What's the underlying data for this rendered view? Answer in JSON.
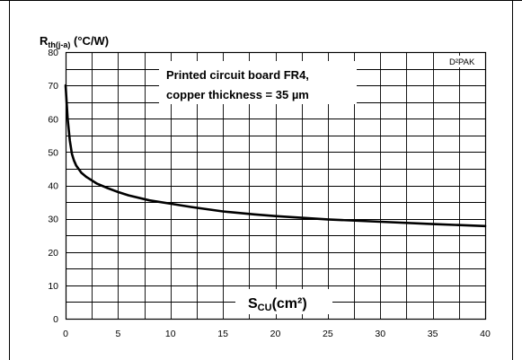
{
  "chart_data": {
    "type": "line",
    "ylabel_main": "R",
    "ylabel_sub": "th(j-a)",
    "ylabel_unit": " (°C/W)",
    "xlabel_main": "S",
    "xlabel_sub": "CU",
    "xlabel_unit": "(cm²)",
    "annotation_line1": "Printed circuit board FR4,",
    "annotation_line2": "copper thickness = 35 µm",
    "package_label": "D²PAK",
    "xlim": [
      0,
      40
    ],
    "ylim": [
      0,
      80
    ],
    "x_ticks": [
      0,
      5,
      10,
      15,
      20,
      25,
      30,
      35,
      40
    ],
    "y_ticks": [
      0,
      10,
      20,
      30,
      40,
      50,
      60,
      70,
      80
    ],
    "grid": true,
    "series": [
      {
        "x": [
          0,
          0.2,
          0.4,
          0.6,
          0.8,
          1,
          1.5,
          2,
          3,
          4,
          5,
          6,
          8,
          10,
          12,
          15,
          18,
          20,
          25,
          30,
          35,
          40
        ],
        "y": [
          70,
          60,
          53.5,
          49.5,
          47.5,
          46,
          43.8,
          42.5,
          40.5,
          39.2,
          38,
          37,
          35.5,
          34.5,
          33.5,
          32.2,
          31.3,
          30.8,
          29.8,
          29.1,
          28.4,
          27.8
        ]
      }
    ]
  }
}
